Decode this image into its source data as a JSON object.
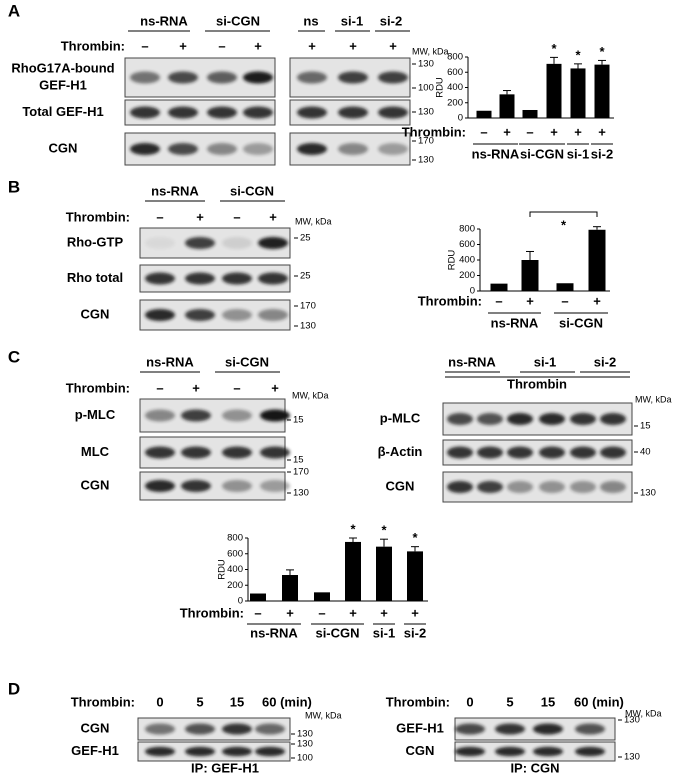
{
  "panels": {
    "a": {
      "label": "A",
      "groups": [
        "ns-RNA",
        "si-CGN",
        "ns",
        "si-1",
        "si-2"
      ],
      "thrombin": "Thrombin:",
      "treatments": [
        "–",
        "+",
        "–",
        "+",
        "+",
        "+",
        "+"
      ],
      "mw_unit": "MW, kDa",
      "rows": [
        {
          "label": [
            "RhoG17A-bound",
            "GEF-H1"
          ],
          "mw": [
            130,
            100
          ]
        },
        {
          "label": [
            "Total GEF-H1"
          ],
          "mw": [
            130
          ]
        },
        {
          "label": [
            "CGN"
          ],
          "mw": [
            170,
            130
          ]
        }
      ]
    },
    "b": {
      "label": "B",
      "groups": [
        "ns-RNA",
        "si-CGN"
      ],
      "thrombin": "Thrombin:",
      "treatments": [
        "–",
        "+",
        "–",
        "+"
      ],
      "mw_unit": "MW, kDa",
      "rows": [
        {
          "label": [
            "Rho-GTP"
          ],
          "mw": [
            25
          ]
        },
        {
          "label": [
            "Rho total"
          ],
          "mw": [
            25
          ]
        },
        {
          "label": [
            "CGN"
          ],
          "mw": [
            170,
            130
          ]
        }
      ]
    },
    "c": {
      "label": "C",
      "left": {
        "groups": [
          "ns-RNA",
          "si-CGN"
        ],
        "thrombin": "Thrombin:",
        "treatments": [
          "–",
          "+",
          "–",
          "+"
        ],
        "mw_unit": "MW, kDa",
        "rows": [
          {
            "label": [
              "p-MLC"
            ],
            "mw": [
              15
            ]
          },
          {
            "label": [
              "MLC"
            ],
            "mw": [
              15
            ]
          },
          {
            "label": [
              "CGN"
            ],
            "mw": [
              170,
              130
            ]
          }
        ]
      },
      "right": {
        "groups": [
          "ns-RNA",
          "si-1",
          "si-2"
        ],
        "treatment": "Thrombin",
        "mw_unit": "MW, kDa",
        "rows": [
          {
            "label": [
              "p-MLC"
            ],
            "mw": [
              15
            ]
          },
          {
            "label": [
              "β-Actin"
            ],
            "mw": [
              40
            ]
          },
          {
            "label": [
              "CGN"
            ],
            "mw": [
              130
            ]
          }
        ]
      }
    },
    "d": {
      "label": "D",
      "left": {
        "thrombin": "Thrombin:",
        "times": [
          "0",
          "5",
          "15",
          "60 (min)"
        ],
        "mw_unit": "MW, kDa",
        "rows": [
          {
            "label": [
              "CGN"
            ],
            "mw": [
              130
            ]
          },
          {
            "label": [
              "GEF-H1"
            ],
            "mw": [
              130,
              100
            ]
          }
        ],
        "ip": "IP: GEF-H1"
      },
      "right": {
        "thrombin": "Thrombin:",
        "times": [
          "0",
          "5",
          "15",
          "60 (min)"
        ],
        "mw_unit": "MW, kDa",
        "rows": [
          {
            "label": [
              "GEF-H1"
            ],
            "mw": [
              130
            ]
          },
          {
            "label": [
              "CGN"
            ],
            "mw": [
              130
            ]
          }
        ],
        "ip": "IP: CGN"
      }
    }
  },
  "chart_data": [
    {
      "type": "bar",
      "y_label": "RDU",
      "category_label": "Thrombin:",
      "categories": [
        "–",
        "+",
        "–",
        "+",
        "+",
        "+"
      ],
      "groups": [
        "ns-RNA",
        "si-CGN",
        "si-1",
        "si-2"
      ],
      "values": [
        95,
        310,
        105,
        710,
        650,
        700
      ],
      "errors": [
        null,
        50,
        null,
        85,
        60,
        55
      ],
      "significance": [
        null,
        null,
        null,
        "*",
        "*",
        "*"
      ],
      "color": "#000000",
      "ylim": [
        0,
        800
      ],
      "yticks": [
        0,
        200,
        400,
        600,
        800
      ]
    },
    {
      "type": "bar",
      "y_label": "RDU",
      "category_label": "Thrombin:",
      "categories": [
        "–",
        "+",
        "–",
        "+"
      ],
      "groups": [
        "ns-RNA",
        "si-CGN"
      ],
      "values": [
        95,
        400,
        100,
        790
      ],
      "errors": [
        null,
        110,
        null,
        40
      ],
      "significance": "*",
      "color": "#000000",
      "ylim": [
        0,
        800
      ],
      "yticks": [
        0,
        200,
        400,
        600,
        800
      ]
    },
    {
      "type": "bar",
      "y_label": "RDU",
      "category_label": "Thrombin:",
      "categories": [
        "–",
        "+",
        "–",
        "+",
        "+",
        "+"
      ],
      "groups": [
        "ns-RNA",
        "si-CGN",
        "si-1",
        "si-2"
      ],
      "values": [
        95,
        330,
        110,
        750,
        690,
        630
      ],
      "errors": [
        null,
        65,
        null,
        50,
        95,
        60
      ],
      "significance": [
        null,
        null,
        null,
        "*",
        "*",
        "*"
      ],
      "color": "#000000",
      "ylim": [
        0,
        800
      ],
      "yticks": [
        0,
        200,
        400,
        600,
        800
      ]
    }
  ]
}
